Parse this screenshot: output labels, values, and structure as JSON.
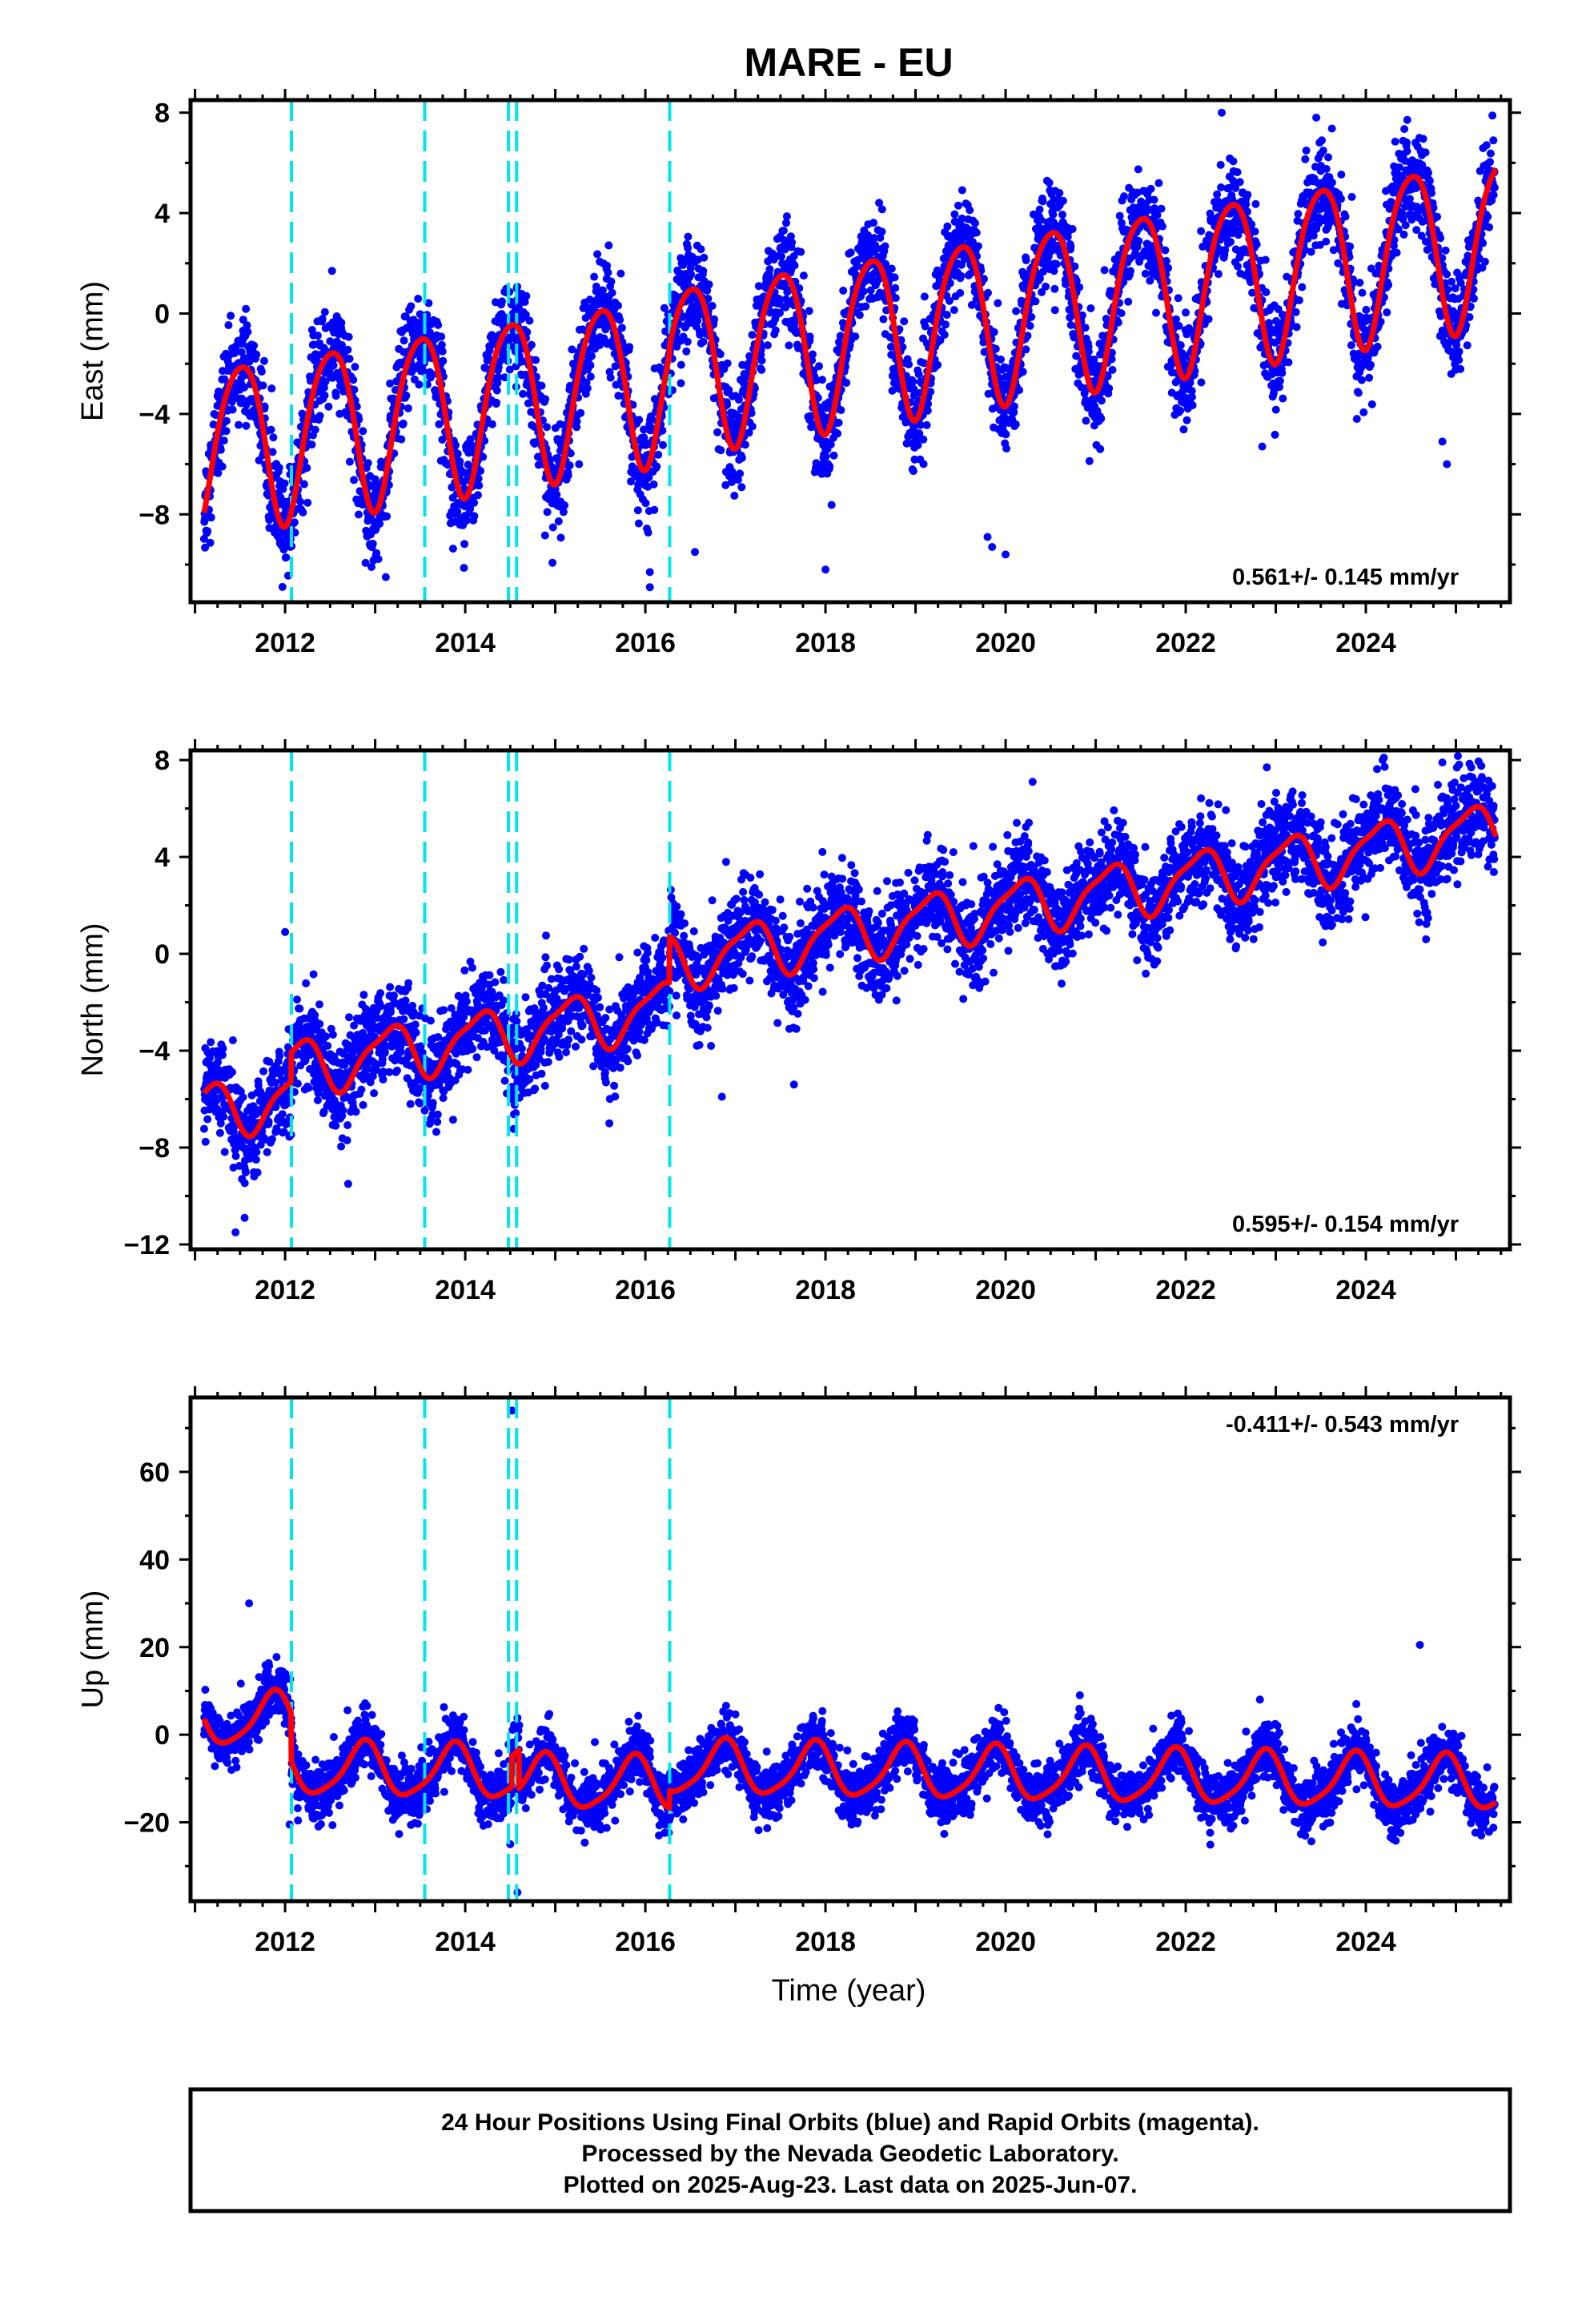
{
  "title": "MARE - EU",
  "x_axis_label": "Time (year)",
  "footer": [
    "24 Hour Positions Using Final Orbits (blue) and Rapid Orbits (magenta).",
    "Processed by the Nevada Geodetic Laboratory.",
    "Plotted on 2025-Aug-23. Last data on 2025-Jun-07."
  ],
  "colors": {
    "points": "#0000ff",
    "model": "#ff0000",
    "offsets": "#00e5ee",
    "frame": "#000000"
  },
  "chart_data": [
    {
      "type": "scatter",
      "panel": "east",
      "ylabel": "East (mm)",
      "xlim": [
        2010.95,
        2025.6
      ],
      "ylim": [
        -11.5,
        8.5
      ],
      "x_ticks": [
        2012,
        2014,
        2016,
        2018,
        2020,
        2022,
        2024
      ],
      "y_ticks": [
        -8,
        -4,
        0,
        4,
        8
      ],
      "rate_label": "0.561+/- 0.145 mm/yr",
      "rate_position": "bottom-right",
      "offset_epochs": [
        2012.07,
        2013.55,
        2014.48,
        2014.57,
        2016.27
      ],
      "model": {
        "x_start": 2011.1,
        "x_end": 2025.45,
        "ref_epoch": 2018.0,
        "intercept": -1.4,
        "rate": 0.561,
        "annual_amp": 3.3,
        "annual_phase": 0.25,
        "semiannual_amp": 0.45,
        "semiannual_phase": 0.1,
        "steps": [
          {
            "t": 2016.27,
            "dy": 0.3
          }
        ]
      },
      "points_summary": {
        "start": 2011.1,
        "end": 2025.43,
        "scatter_sd": 1.0
      },
      "outliers": [
        [
          2011.9,
          -8.1
        ],
        [
          2012.95,
          -8.8
        ],
        [
          2016.05,
          -10.3
        ],
        [
          2016.05,
          -10.9
        ],
        [
          2018.0,
          -10.2
        ],
        [
          2019.8,
          -8.9
        ],
        [
          2019.85,
          -9.3
        ],
        [
          2020.0,
          -9.6
        ],
        [
          2016.55,
          -9.5
        ],
        [
          2021.05,
          -5.4
        ],
        [
          2022.85,
          -5.3
        ],
        [
          2023.9,
          -4.2
        ],
        [
          2024.85,
          -5.1
        ],
        [
          2024.9,
          -6.0
        ],
        [
          2015.0,
          -7.0
        ],
        [
          2013.0,
          -6.6
        ],
        [
          2022.4,
          8.0
        ],
        [
          2023.45,
          7.8
        ]
      ]
    },
    {
      "type": "scatter",
      "panel": "north",
      "ylabel": "North (mm)",
      "xlim": [
        2010.95,
        2025.6
      ],
      "ylim": [
        -12.2,
        8.4
      ],
      "x_ticks": [
        2012,
        2014,
        2016,
        2018,
        2020,
        2022,
        2024
      ],
      "y_ticks": [
        -12,
        -8,
        -4,
        0,
        4,
        8
      ],
      "rate_label": "0.595+/- 0.154 mm/yr",
      "rate_position": "bottom-right",
      "offset_epochs": [
        2012.07,
        2013.55,
        2014.48,
        2014.57,
        2016.27
      ],
      "model": {
        "x_start": 2011.1,
        "x_end": 2025.45,
        "ref_epoch": 2018.0,
        "intercept": -2.4,
        "rate": 0.595,
        "annual_amp": 1.1,
        "annual_phase": 0.9,
        "semiannual_amp": 0.3,
        "semiannual_phase": 0.2,
        "steps": [
          {
            "t": 2012.07,
            "dy": 1.2
          },
          {
            "t": 2016.27,
            "dy": 1.9
          }
        ]
      },
      "points_summary": {
        "start": 2011.1,
        "end": 2025.43,
        "scatter_sd": 0.95
      },
      "outliers": [
        [
          2012.0,
          0.9
        ],
        [
          2011.45,
          -11.5
        ],
        [
          2011.55,
          -10.9
        ],
        [
          2012.7,
          -9.5
        ],
        [
          2016.85,
          -5.9
        ],
        [
          2017.65,
          -5.4
        ],
        [
          2020.3,
          7.1
        ],
        [
          2022.9,
          7.7
        ],
        [
          2024.2,
          8.1
        ],
        [
          2024.85,
          7.9
        ],
        [
          2024.55,
          6.8
        ],
        [
          2015.6,
          -7.0
        ]
      ]
    },
    {
      "type": "scatter",
      "panel": "up",
      "ylabel": "Up (mm)",
      "xlim": [
        2010.95,
        2025.6
      ],
      "ylim": [
        -38,
        77
      ],
      "x_ticks": [
        2012,
        2014,
        2016,
        2018,
        2020,
        2022,
        2024
      ],
      "y_ticks": [
        -20,
        0,
        20,
        40,
        60
      ],
      "rate_label": "-0.411+/- 0.543 mm/yr",
      "rate_position": "top-right",
      "offset_epochs": [
        2012.07,
        2013.55,
        2014.48,
        2014.57,
        2016.27
      ],
      "model": {
        "x_start": 2011.1,
        "x_end": 2025.45,
        "ref_epoch": 2018.0,
        "intercept": 0.8,
        "rate": -0.411,
        "annual_amp": 6.0,
        "annual_phase": 0.62,
        "semiannual_amp": 1.2,
        "semiannual_phase": 0.3,
        "steps": [
          {
            "t": 2012.07,
            "dy": -11.0
          },
          {
            "t": 2014.52,
            "dy": 7.0
          },
          {
            "t": 2014.6,
            "dy": -9.0
          },
          {
            "t": 2016.27,
            "dy": 4.0
          }
        ]
      },
      "points_summary": {
        "start": 2011.1,
        "end": 2025.43,
        "scatter_sd": 3.2
      },
      "outliers": [
        [
          2014.52,
          74.0
        ],
        [
          2014.5,
          -25.0
        ],
        [
          2014.58,
          -36.0
        ],
        [
          2012.05,
          -20.5
        ],
        [
          2016.15,
          -23.0
        ],
        [
          2024.6,
          20.5
        ],
        [
          2011.6,
          30.0
        ]
      ]
    }
  ]
}
